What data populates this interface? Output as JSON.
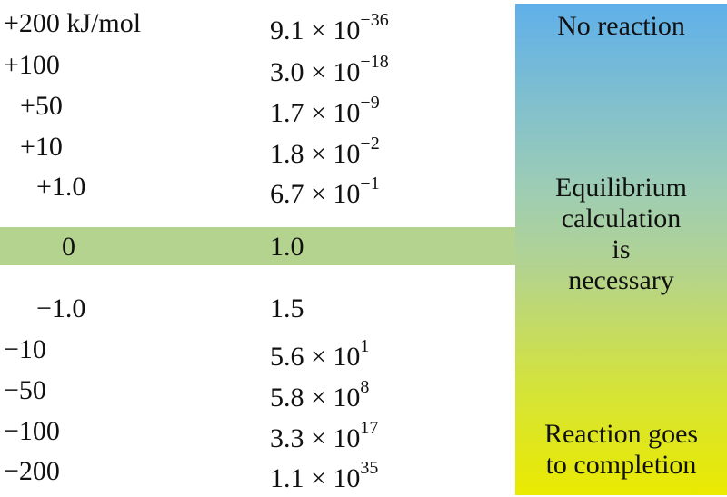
{
  "rows": [
    {
      "dg_sign": "+",
      "dg_value": "200",
      "dg_unit": "kJ/mol",
      "k_mantissa": "9.1",
      "k_times": "×",
      "k_base": "10",
      "k_exponent": "−36"
    },
    {
      "dg_sign": "+",
      "dg_value": "100",
      "dg_unit": "",
      "k_mantissa": "3.0",
      "k_times": "×",
      "k_base": "10",
      "k_exponent": "−18"
    },
    {
      "dg_sign": "+",
      "dg_value": "50",
      "dg_unit": "",
      "k_mantissa": "1.7",
      "k_times": "×",
      "k_base": "10",
      "k_exponent": "−9"
    },
    {
      "dg_sign": "+",
      "dg_value": "10",
      "dg_unit": "",
      "k_mantissa": "1.8",
      "k_times": "×",
      "k_base": "10",
      "k_exponent": "−2"
    },
    {
      "dg_sign": "+",
      "dg_value": "1.0",
      "dg_unit": "",
      "k_mantissa": "6.7",
      "k_times": "×",
      "k_base": "10",
      "k_exponent": "−1"
    },
    {
      "dg_sign": "",
      "dg_value": "0",
      "dg_unit": "",
      "k_mantissa": "1.0",
      "k_times": "",
      "k_base": "",
      "k_exponent": ""
    },
    {
      "dg_sign": "−",
      "dg_value": "1.0",
      "dg_unit": "",
      "k_mantissa": "1.5",
      "k_times": "",
      "k_base": "",
      "k_exponent": ""
    },
    {
      "dg_sign": "−",
      "dg_value": "10",
      "dg_unit": "",
      "k_mantissa": "5.6",
      "k_times": "×",
      "k_base": "10",
      "k_exponent": "1"
    },
    {
      "dg_sign": "−",
      "dg_value": "50",
      "dg_unit": "",
      "k_mantissa": "5.8",
      "k_times": "×",
      "k_base": "10",
      "k_exponent": "8"
    },
    {
      "dg_sign": "−",
      "dg_value": "100",
      "dg_unit": "",
      "k_mantissa": "3.3",
      "k_times": "×",
      "k_base": "10",
      "k_exponent": "17"
    },
    {
      "dg_sign": "−",
      "dg_value": "200",
      "dg_unit": "",
      "k_mantissa": "1.1",
      "k_times": "×",
      "k_base": "10",
      "k_exponent": "35"
    }
  ],
  "panel": {
    "top_label": "No reaction",
    "middle_label": [
      "Equilibrium",
      "calculation",
      "is",
      "necessary"
    ],
    "bottom_label": [
      "Reaction goes",
      "to completion"
    ]
  },
  "colors": {
    "highlight": "#b3d38f",
    "gradient_top": "#5fb0ea",
    "gradient_bottom": "#eaea00"
  }
}
